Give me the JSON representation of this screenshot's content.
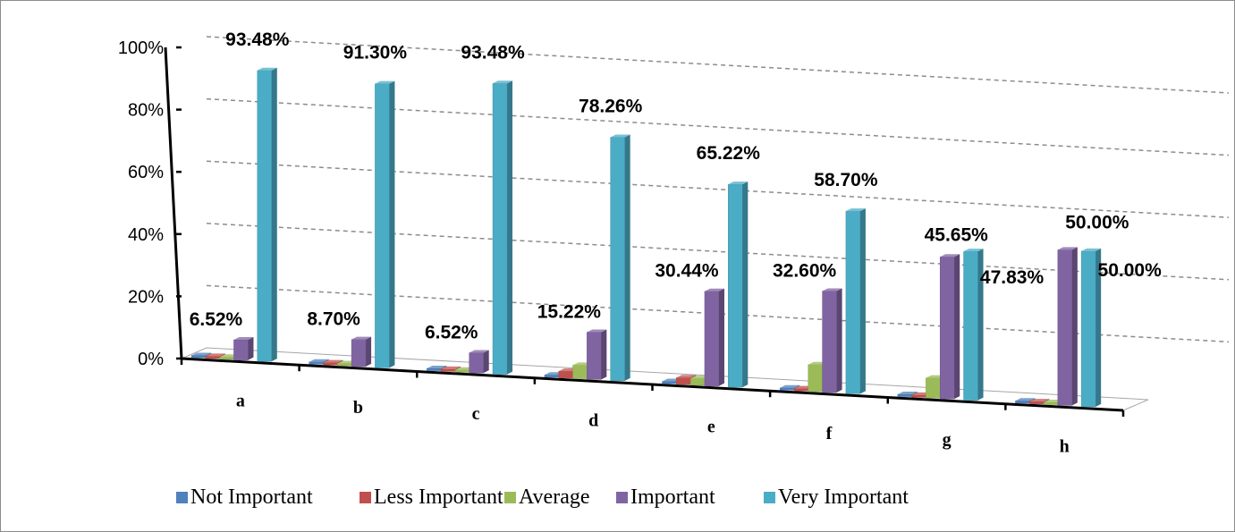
{
  "chart_data": {
    "type": "bar",
    "categories": [
      "a",
      "b",
      "c",
      "d",
      "e",
      "f",
      "g",
      "h"
    ],
    "ylim": [
      0,
      100
    ],
    "y_ticks": [
      "0%",
      "20%",
      "40%",
      "60%",
      "80%",
      "100%"
    ],
    "grid": true,
    "legend_position": "bottom",
    "series": [
      {
        "name": "Not Important",
        "color": "#4f81bd",
        "values": [
          0,
          0,
          0,
          0,
          0,
          0,
          0,
          0
        ]
      },
      {
        "name": "Less Important",
        "color": "#c0504d",
        "values": [
          0,
          0,
          0,
          2.17,
          2.17,
          0,
          0,
          0
        ]
      },
      {
        "name": "Average",
        "color": "#9bbb59",
        "values": [
          0,
          0,
          0,
          4.35,
          2.17,
          8.7,
          6.52,
          0
        ]
      },
      {
        "name": "Important",
        "color": "#8064a2",
        "values": [
          6.52,
          8.7,
          6.52,
          15.22,
          30.44,
          32.6,
          45.65,
          50.0
        ]
      },
      {
        "name": "Very Important",
        "color": "#4bacc6",
        "values": [
          93.48,
          91.3,
          93.48,
          78.26,
          65.22,
          58.7,
          47.83,
          50.0
        ]
      }
    ],
    "data_labels": [
      {
        "category": "a",
        "series": "Very Important",
        "text": "93.48%"
      },
      {
        "category": "b",
        "series": "Very Important",
        "text": "91.30%"
      },
      {
        "category": "c",
        "series": "Very Important",
        "text": "93.48%"
      },
      {
        "category": "d",
        "series": "Very Important",
        "text": "78.26%"
      },
      {
        "category": "e",
        "series": "Very Important",
        "text": "65.22%"
      },
      {
        "category": "f",
        "series": "Very Important",
        "text": "58.70%"
      },
      {
        "category": "g",
        "series": "Very Important",
        "text": "47.83%"
      },
      {
        "category": "h",
        "series": "Very Important",
        "text": "50.00%"
      },
      {
        "category": "a",
        "series": "Important",
        "text": "6.52%"
      },
      {
        "category": "b",
        "series": "Important",
        "text": "8.70%"
      },
      {
        "category": "c",
        "series": "Important",
        "text": "6.52%"
      },
      {
        "category": "d",
        "series": "Important",
        "text": "15.22%"
      },
      {
        "category": "e",
        "series": "Important",
        "text": "30.44%"
      },
      {
        "category": "f",
        "series": "Important",
        "text": "32.60%"
      },
      {
        "category": "g",
        "series": "Important",
        "text": "45.65%"
      },
      {
        "category": "h",
        "series": "Important",
        "text": "50.00%"
      }
    ]
  }
}
